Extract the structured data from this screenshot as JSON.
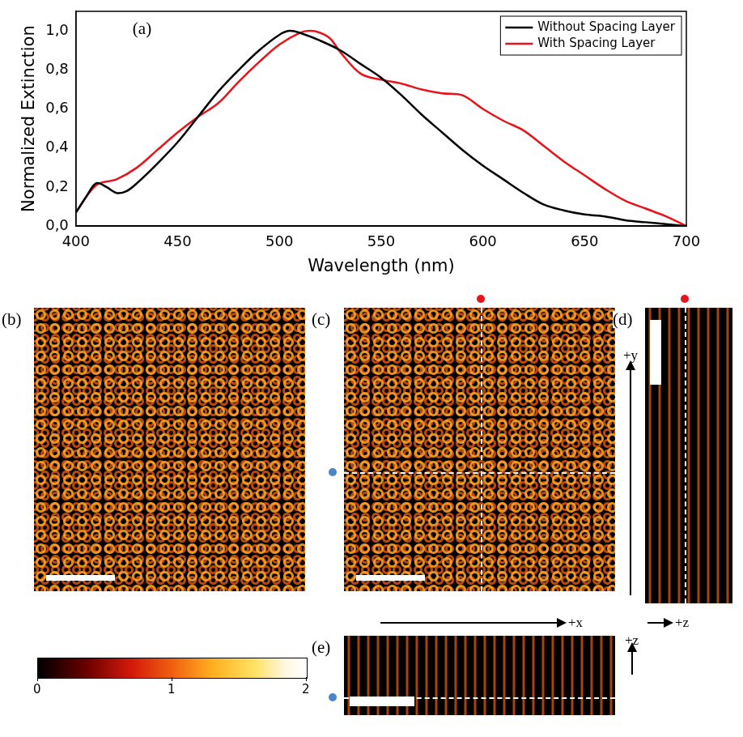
{
  "chart_data": {
    "type": "line",
    "title": "(a)",
    "x_label": "Wavelength (nm)",
    "y_label": "Normalized Extinction",
    "xlim": [
      400,
      700
    ],
    "xticks": [
      400,
      450,
      500,
      550,
      600,
      650,
      700
    ],
    "ylim": [
      0,
      1.1
    ],
    "yticks": [
      {
        "value": 0,
        "label": "0,0"
      },
      {
        "value": 0.2,
        "label": "0,2"
      },
      {
        "value": 0.4,
        "label": "0,4"
      },
      {
        "value": 0.6,
        "label": "0,6"
      },
      {
        "value": 0.8,
        "label": "0,8"
      },
      {
        "value": 1.0,
        "label": "1,0"
      }
    ],
    "grid": false,
    "legend": "upper right",
    "series": [
      {
        "name": "Without Spacing Layer",
        "color": "#000000",
        "x": [
          400,
          405,
          410,
          415,
          420,
          425,
          430,
          440,
          450,
          460,
          470,
          480,
          490,
          500,
          505,
          510,
          520,
          530,
          540,
          550,
          560,
          570,
          580,
          590,
          600,
          610,
          620,
          630,
          640,
          650,
          660,
          670,
          680,
          690,
          700
        ],
        "values": [
          0.07,
          0.15,
          0.22,
          0.2,
          0.17,
          0.18,
          0.22,
          0.32,
          0.43,
          0.56,
          0.69,
          0.8,
          0.9,
          0.98,
          1.0,
          0.99,
          0.95,
          0.9,
          0.83,
          0.76,
          0.67,
          0.57,
          0.48,
          0.39,
          0.31,
          0.24,
          0.17,
          0.11,
          0.08,
          0.06,
          0.05,
          0.03,
          0.02,
          0.01,
          0.0
        ]
      },
      {
        "name": "With Spacing Layer",
        "color": "#e8141c",
        "x": [
          400,
          410,
          420,
          430,
          440,
          450,
          460,
          470,
          480,
          490,
          500,
          510,
          515,
          520,
          525,
          530,
          540,
          550,
          560,
          570,
          580,
          590,
          600,
          610,
          620,
          630,
          640,
          650,
          660,
          670,
          680,
          690,
          700
        ],
        "values": [
          0.07,
          0.21,
          0.24,
          0.3,
          0.39,
          0.48,
          0.56,
          0.63,
          0.74,
          0.84,
          0.93,
          0.99,
          1.0,
          0.99,
          0.96,
          0.89,
          0.78,
          0.75,
          0.73,
          0.7,
          0.68,
          0.67,
          0.6,
          0.54,
          0.49,
          0.41,
          0.33,
          0.26,
          0.19,
          0.13,
          0.09,
          0.05,
          0.0
        ]
      }
    ]
  },
  "images": {
    "panels": [
      {
        "label": "(b)"
      },
      {
        "label": "(c)"
      },
      {
        "label": "(d)"
      },
      {
        "label": "(e)"
      }
    ],
    "directions": {
      "c_horizontal": "+x",
      "d_vertical": "+y",
      "d_horizontal": "+z",
      "e_vertical": "+z"
    },
    "colorbar": {
      "range": [
        0,
        2
      ],
      "ticks": [
        0,
        1,
        2
      ]
    }
  }
}
